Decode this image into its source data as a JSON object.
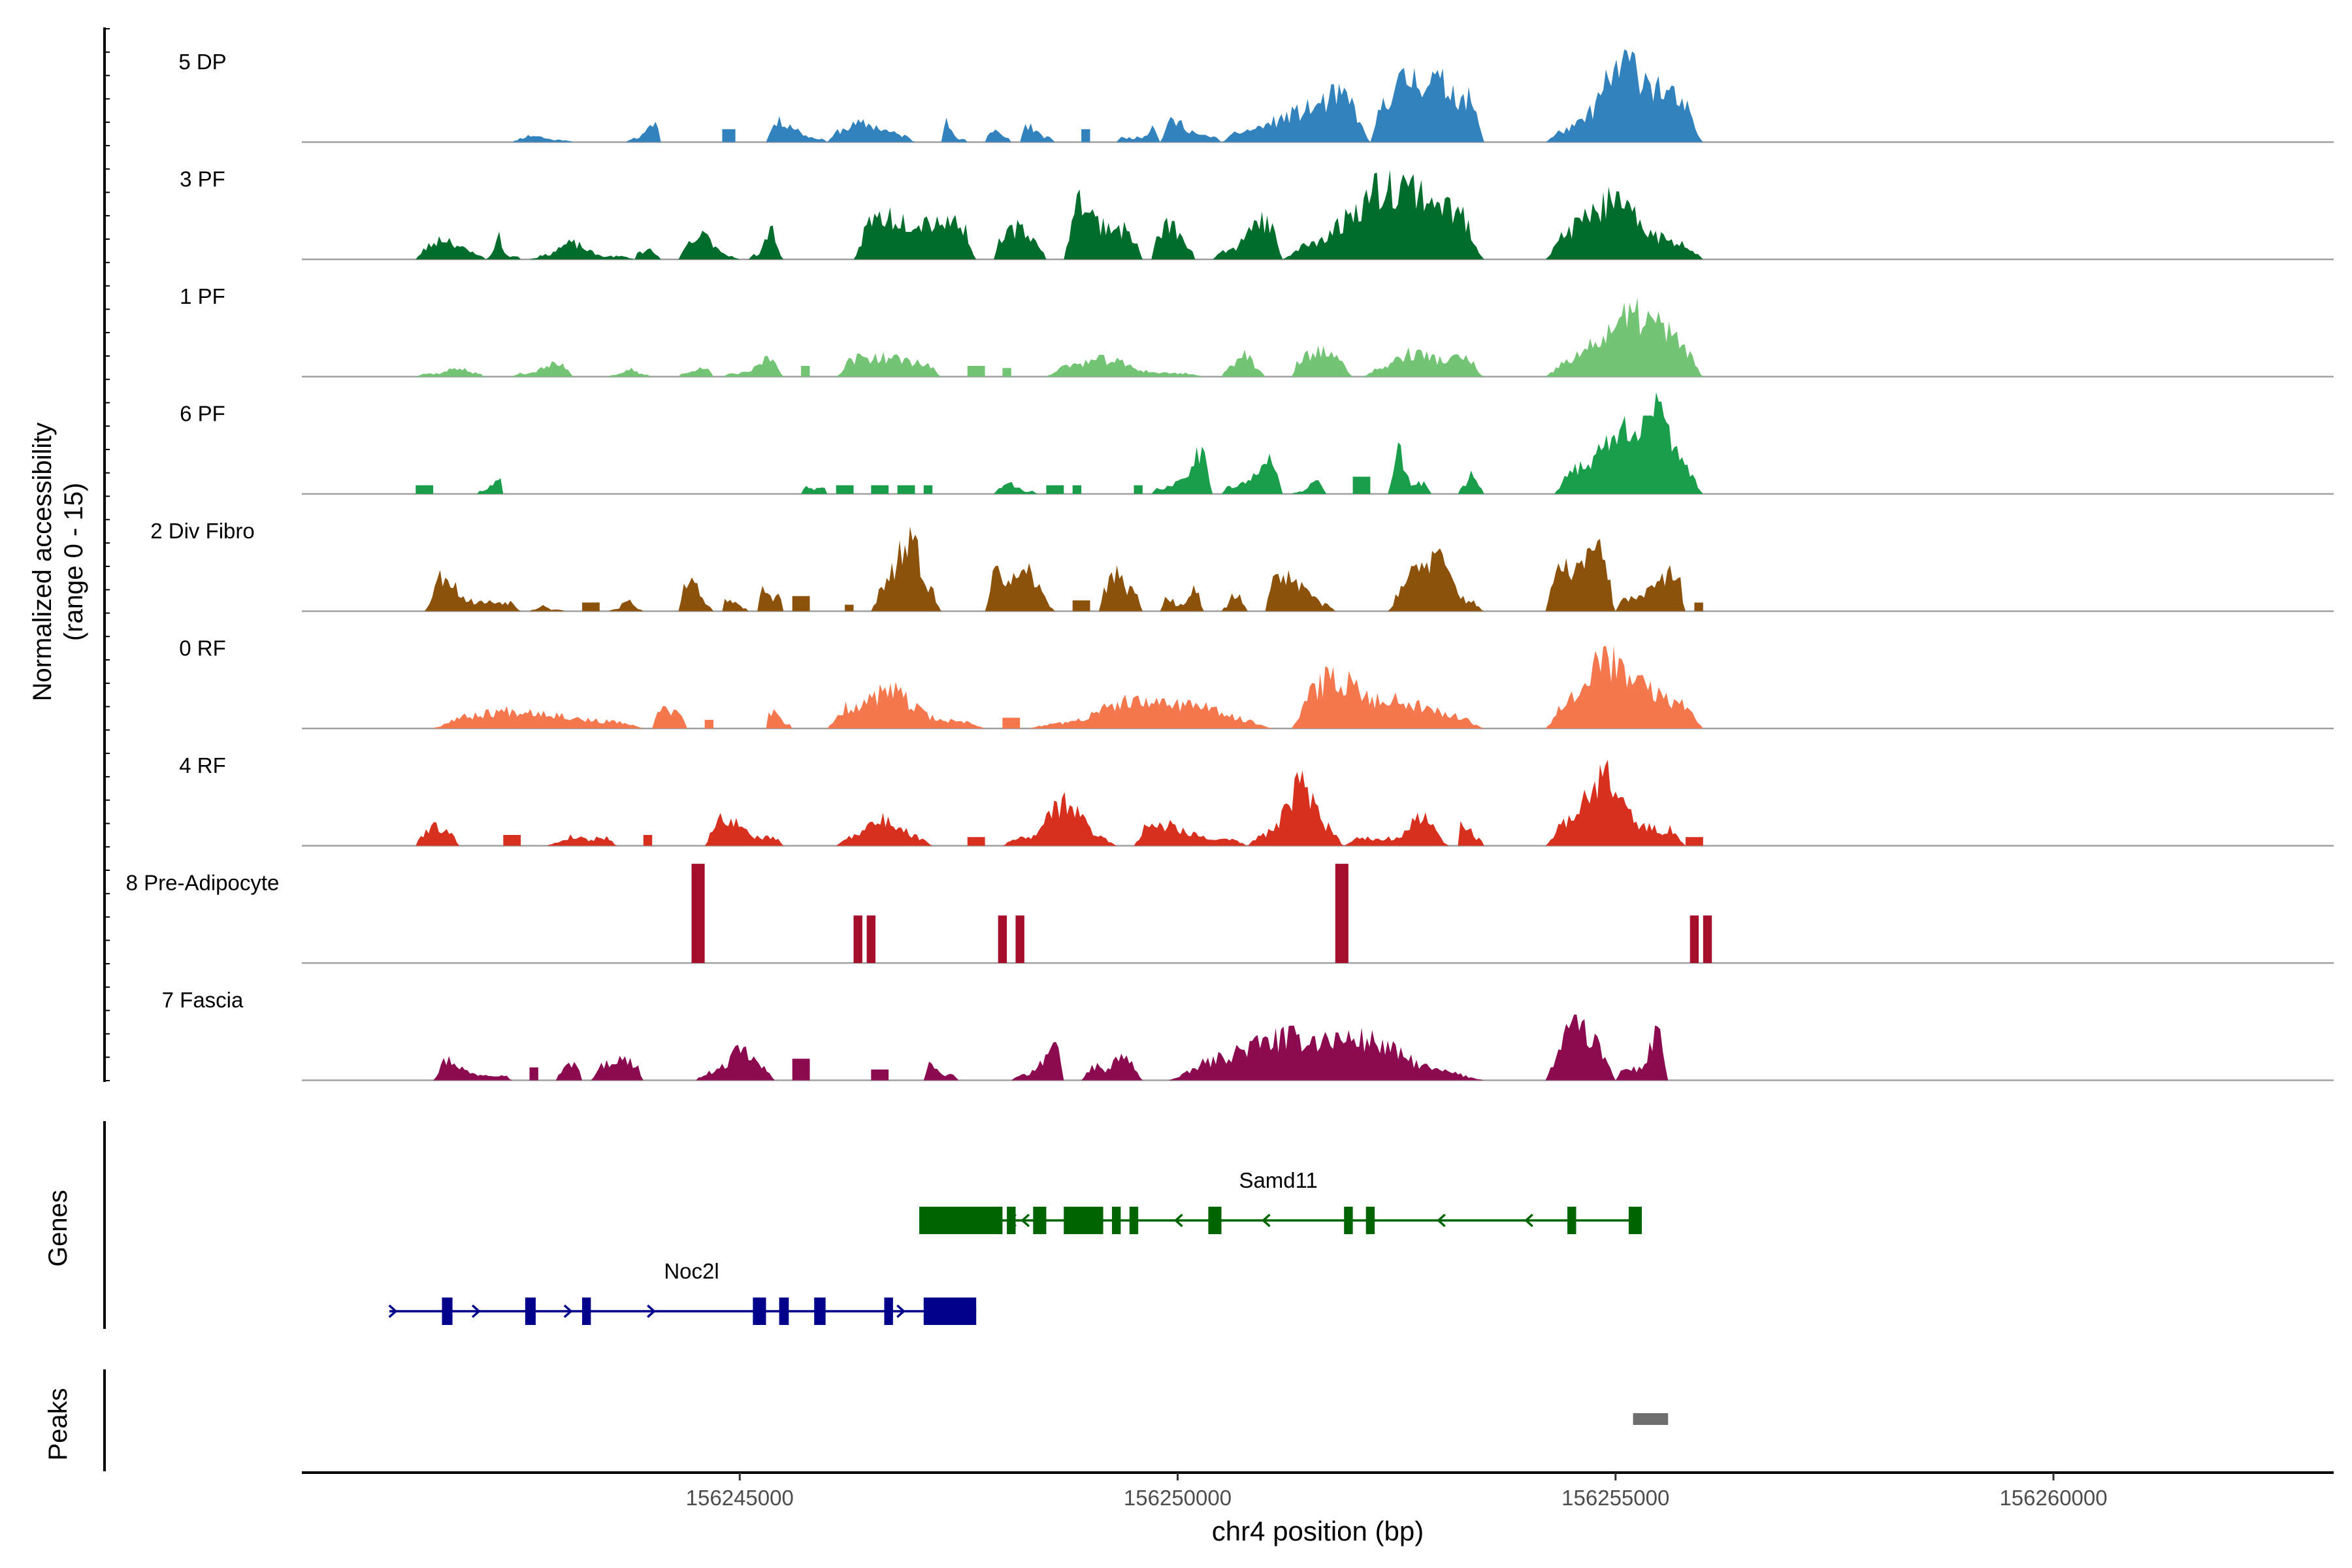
{
  "chart_data": {
    "type": "area",
    "title": "",
    "xlabel": "chr4 position (bp)",
    "ylabel": "Normalized accessibility",
    "ylabel_range": "(range 0 - 15)",
    "xlim": [
      156240000,
      156263200
    ],
    "ylim": [
      0,
      15
    ],
    "x_ticks": [
      156245000,
      156250000,
      156255000,
      156260000
    ],
    "x_tick_labels": [
      "156245000",
      "156250000",
      "156255000",
      "156260000"
    ],
    "tracks": [
      {
        "name": "5 DP",
        "color": "#3182bd",
        "seed": 11,
        "segments": [
          [
            156242400,
            156243100,
            2.5
          ],
          [
            156243700,
            156244100,
            3.8
          ],
          [
            156244800,
            156244950,
            3.0
          ],
          [
            156245300,
            156246000,
            4.2
          ],
          [
            156246000,
            156247000,
            6.0
          ],
          [
            156247300,
            156247600,
            3.5
          ],
          [
            156247800,
            156248100,
            4.0
          ],
          [
            156248200,
            156248600,
            5.0
          ],
          [
            156248900,
            156249000,
            3.0
          ],
          [
            156249300,
            156249800,
            5.2
          ],
          [
            156249800,
            156250500,
            6.0
          ],
          [
            156250500,
            156252200,
            9.0
          ],
          [
            156252200,
            156253500,
            11.0
          ],
          [
            156254200,
            156256000,
            13.0
          ]
        ]
      },
      {
        "name": "3 PF",
        "color": "#006d2c",
        "seed": 23,
        "segments": [
          [
            156241300,
            156242100,
            6.5
          ],
          [
            156242100,
            156242500,
            3.5
          ],
          [
            156242600,
            156243800,
            3.5
          ],
          [
            156243800,
            156244100,
            2.5
          ],
          [
            156244300,
            156245000,
            3.0
          ],
          [
            156245100,
            156245500,
            5.0
          ],
          [
            156246300,
            156247700,
            9.0
          ],
          [
            156247900,
            156248500,
            11.0
          ],
          [
            156248700,
            156249600,
            10.0
          ],
          [
            156249700,
            156250200,
            10.0
          ],
          [
            156250400,
            156251200,
            11.0
          ],
          [
            156251200,
            156253500,
            12.0
          ],
          [
            156254200,
            156256000,
            18.0
          ]
        ]
      },
      {
        "name": "1 PF",
        "color": "#74c476",
        "seed": 37,
        "segments": [
          [
            156241300,
            156242100,
            3.5
          ],
          [
            156242400,
            156243100,
            3.5
          ],
          [
            156243500,
            156244000,
            2.5
          ],
          [
            156244300,
            156244700,
            3.5
          ],
          [
            156244800,
            156245500,
            3.0
          ],
          [
            156245700,
            156245800,
            2.5
          ],
          [
            156246100,
            156247300,
            4.0
          ],
          [
            156247600,
            156247800,
            2.5
          ],
          [
            156248000,
            156248100,
            2.0
          ],
          [
            156248500,
            156250300,
            4.0
          ],
          [
            156250500,
            156251000,
            3.5
          ],
          [
            156251300,
            156252000,
            4.5
          ],
          [
            156252100,
            156253500,
            4.5
          ],
          [
            156254200,
            156256000,
            10.0
          ]
        ]
      },
      {
        "name": "6 PF",
        "color": "#1b9e4b",
        "seed": 41,
        "segments": [
          [
            156241300,
            156241500,
            2.0
          ],
          [
            156242000,
            156242300,
            4.5
          ],
          [
            156245700,
            156246000,
            2.0
          ],
          [
            156246100,
            156246300,
            2.0
          ],
          [
            156246500,
            156246700,
            2.0
          ],
          [
            156246800,
            156247000,
            2.0
          ],
          [
            156247100,
            156247200,
            2.0
          ],
          [
            156247900,
            156248400,
            3.0
          ],
          [
            156248500,
            156248700,
            2.0
          ],
          [
            156248800,
            156248900,
            2.0
          ],
          [
            156249500,
            156249600,
            2.0
          ],
          [
            156249700,
            156250400,
            7.0
          ],
          [
            156250500,
            156251200,
            8.0
          ],
          [
            156251300,
            156251700,
            2.5
          ],
          [
            156252000,
            156252200,
            4.0
          ],
          [
            156252400,
            156252900,
            12.0
          ],
          [
            156253200,
            156253500,
            7.0
          ],
          [
            156254300,
            156256000,
            19.0
          ]
        ]
      },
      {
        "name": "2 Div Fibro",
        "color": "#8c510a",
        "seed": 53,
        "segments": [
          [
            156241400,
            156242500,
            11.0
          ],
          [
            156242600,
            156243000,
            2.0
          ],
          [
            156243200,
            156243400,
            2.0
          ],
          [
            156243500,
            156243900,
            2.0
          ],
          [
            156244300,
            156244700,
            5.0
          ],
          [
            156244800,
            156245100,
            3.5
          ],
          [
            156245200,
            156245500,
            4.0
          ],
          [
            156245600,
            156245800,
            3.5
          ],
          [
            156246200,
            156246300,
            1.5
          ],
          [
            156246500,
            156247300,
            9.0
          ],
          [
            156247800,
            156248600,
            9.0
          ],
          [
            156248800,
            156249000,
            2.5
          ],
          [
            156249100,
            156249600,
            7.0
          ],
          [
            156249800,
            156250300,
            4.0
          ],
          [
            156250500,
            156250800,
            2.5
          ],
          [
            156251000,
            156251800,
            7.0
          ],
          [
            156252400,
            156253500,
            9.0
          ],
          [
            156254200,
            156255000,
            15.0
          ],
          [
            156255000,
            156255800,
            14.0
          ],
          [
            156255900,
            156256000,
            2.0
          ]
        ]
      },
      {
        "name": "0 RF",
        "color": "#f4774e",
        "seed": 67,
        "segments": [
          [
            156241500,
            156243900,
            6.5
          ],
          [
            156244000,
            156244400,
            3.0
          ],
          [
            156244600,
            156244700,
            2.0
          ],
          [
            156245300,
            156245600,
            5.0
          ],
          [
            156246000,
            156247800,
            7.0
          ],
          [
            156248000,
            156248200,
            2.5
          ],
          [
            156248300,
            156251100,
            6.0
          ],
          [
            156251300,
            156253500,
            9.0
          ],
          [
            156254200,
            156256000,
            16.0
          ]
        ]
      },
      {
        "name": "4 RF",
        "color": "#d7301f",
        "seed": 79,
        "segments": [
          [
            156241300,
            156241800,
            6.0
          ],
          [
            156242300,
            156242500,
            2.5
          ],
          [
            156242800,
            156243600,
            3.0
          ],
          [
            156243900,
            156244000,
            2.5
          ],
          [
            156244600,
            156245500,
            9.5
          ],
          [
            156246100,
            156247200,
            7.0
          ],
          [
            156247600,
            156247800,
            2.0
          ],
          [
            156248000,
            156249300,
            8.0
          ],
          [
            156249500,
            156250800,
            6.0
          ],
          [
            156250800,
            156251900,
            8.0
          ],
          [
            156251900,
            156253100,
            9.0
          ],
          [
            156253200,
            156253500,
            9.0
          ],
          [
            156254200,
            156255800,
            19.0
          ],
          [
            156255800,
            156256000,
            2.0
          ]
        ]
      },
      {
        "name": "8 Pre-Adipocyte",
        "color": "#a50f2b",
        "seed": 83,
        "segments": [
          [
            156244450,
            156244600,
            23.0
          ],
          [
            156246300,
            156246400,
            11.0
          ],
          [
            156246450,
            156246550,
            11.0
          ],
          [
            156247950,
            156248050,
            11.0
          ],
          [
            156248150,
            156248250,
            11.0
          ],
          [
            156251800,
            156251950,
            23.0
          ],
          [
            156255850,
            156255950,
            11.0
          ],
          [
            156256000,
            156256100,
            11.0
          ]
        ]
      },
      {
        "name": "7 Fascia",
        "color": "#8b0a50",
        "seed": 97,
        "segments": [
          [
            156241500,
            156242400,
            7.0
          ],
          [
            156242600,
            156242700,
            3.0
          ],
          [
            156242900,
            156243200,
            6.5
          ],
          [
            156243300,
            156243900,
            4.5
          ],
          [
            156244500,
            156245400,
            8.0
          ],
          [
            156245600,
            156245800,
            5.0
          ],
          [
            156246500,
            156246700,
            2.5
          ],
          [
            156247100,
            156247500,
            6.0
          ],
          [
            156248100,
            156248700,
            5.5
          ],
          [
            156248900,
            156249600,
            4.5
          ],
          [
            156249900,
            156253500,
            7.5
          ],
          [
            156254200,
            156255000,
            12.0
          ],
          [
            156255000,
            156255600,
            13.0
          ]
        ]
      }
    ],
    "genes": [
      {
        "name": "Samd11",
        "strand": "-",
        "color": "#006400",
        "start": 156247050,
        "end": 156255300,
        "exons": [
          [
            156247050,
            156248000
          ],
          [
            156248050,
            156248150
          ],
          [
            156248350,
            156248500
          ],
          [
            156248700,
            156249150
          ],
          [
            156249250,
            156249350
          ],
          [
            156249450,
            156249550
          ],
          [
            156250350,
            156250500
          ],
          [
            156251900,
            156252000
          ],
          [
            156252150,
            156252250
          ],
          [
            156254450,
            156254550
          ],
          [
            156255150,
            156255300
          ]
        ],
        "arrows": [
          156248100,
          156248250,
          156250000,
          156251000,
          156253000,
          156254000
        ]
      },
      {
        "name": "Noc2l",
        "strand": "+",
        "color": "#00008b",
        "start": 156241000,
        "end": 156247700,
        "exons": [
          [
            156241600,
            156241720
          ],
          [
            156242550,
            156242670
          ],
          [
            156243200,
            156243300
          ],
          [
            156245150,
            156245300
          ],
          [
            156245450,
            156245560
          ],
          [
            156245850,
            156245980
          ],
          [
            156246650,
            156246750
          ],
          [
            156247100,
            156247700
          ]
        ],
        "arrows": [
          156241050,
          156242000,
          156243050,
          156244000,
          156246850
        ]
      }
    ],
    "peaks": [
      [
        156255200,
        156255600
      ]
    ],
    "panel_labels": {
      "genes": "Genes",
      "peaks": "Peaks"
    }
  }
}
